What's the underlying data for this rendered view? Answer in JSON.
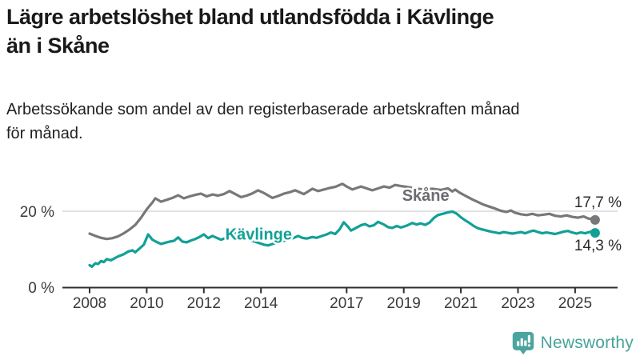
{
  "header": {
    "title_lines": [
      "Lägre arbetslöshet bland utlandsfödda i Kävlinge",
      "än i Skåne"
    ],
    "subtitle_lines": [
      "Arbetssökande som andel av den registerbaserade arbetskraften månad",
      "för månad."
    ]
  },
  "branding": {
    "logo_text": "Newsworthy",
    "logo_icon": "bar-chart-speech-bubble-icon",
    "logo_icon_color": "#4BA59E",
    "logo_text_color": "#47A39B"
  },
  "chart_data": {
    "type": "line",
    "title": "Lägre arbetslöshet bland utlandsfödda i Kävlinge än i Skåne",
    "subtitle": "Arbetssökande som andel av den registerbaserade arbetskraften månad för månad.",
    "xlabel": "",
    "ylabel": "",
    "legend_position": "inline-labels",
    "grid": "horizontal-20-only",
    "style": {
      "grid_color": "#D9D9D9",
      "axis_color": "#2E2E2E",
      "tick_label_color": "#3A3A3A",
      "value_label_color": "#2B2B2B",
      "background": "#FFFFFF"
    },
    "y_axis": {
      "range": [
        0,
        30
      ],
      "ticks": [
        {
          "value": 0,
          "label": "0 %"
        },
        {
          "value": 20,
          "label": "20 %"
        }
      ]
    },
    "x_axis": {
      "range": [
        2007.0,
        2026.5
      ],
      "ticks": [
        {
          "value": 2008,
          "label": "2008"
        },
        {
          "value": 2010,
          "label": "2010"
        },
        {
          "value": 2012,
          "label": "2012"
        },
        {
          "value": 2014,
          "label": "2014"
        },
        {
          "value": 2017,
          "label": "2017"
        },
        {
          "value": 2019,
          "label": "2019"
        },
        {
          "value": 2021,
          "label": "2021"
        },
        {
          "value": 2023,
          "label": "2023"
        },
        {
          "value": 2025,
          "label": "2025"
        }
      ]
    },
    "series": [
      {
        "id": "skane",
        "name": "Skåne",
        "color": "#77777C",
        "label_color": "#6B6B70",
        "end_label": "17,7 %",
        "end_value": 17.7,
        "end_label_side": "above",
        "label_at": [
          2019.77,
          24.2
        ],
        "points": [
          [
            2008.0,
            14.1
          ],
          [
            2008.2,
            13.5
          ],
          [
            2008.4,
            13.0
          ],
          [
            2008.6,
            12.7
          ],
          [
            2008.8,
            12.9
          ],
          [
            2009.0,
            13.4
          ],
          [
            2009.2,
            14.2
          ],
          [
            2009.4,
            15.2
          ],
          [
            2009.6,
            16.4
          ],
          [
            2009.8,
            18.3
          ],
          [
            2010.0,
            20.5
          ],
          [
            2010.2,
            22.3
          ],
          [
            2010.3,
            23.4
          ],
          [
            2010.5,
            22.5
          ],
          [
            2010.7,
            23.0
          ],
          [
            2010.9,
            23.5
          ],
          [
            2011.1,
            24.2
          ],
          [
            2011.3,
            23.4
          ],
          [
            2011.5,
            23.9
          ],
          [
            2011.7,
            24.3
          ],
          [
            2011.9,
            24.6
          ],
          [
            2012.1,
            23.9
          ],
          [
            2012.3,
            24.4
          ],
          [
            2012.5,
            24.1
          ],
          [
            2012.7,
            24.5
          ],
          [
            2012.9,
            25.3
          ],
          [
            2013.1,
            24.5
          ],
          [
            2013.3,
            23.7
          ],
          [
            2013.5,
            24.1
          ],
          [
            2013.7,
            24.7
          ],
          [
            2013.9,
            25.5
          ],
          [
            2014.1,
            24.8
          ],
          [
            2014.4,
            23.5
          ],
          [
            2014.6,
            24.0
          ],
          [
            2014.8,
            24.6
          ],
          [
            2015.0,
            25.0
          ],
          [
            2015.2,
            25.5
          ],
          [
            2015.5,
            24.5
          ],
          [
            2015.8,
            25.9
          ],
          [
            2016.0,
            25.3
          ],
          [
            2016.2,
            25.7
          ],
          [
            2016.4,
            26.1
          ],
          [
            2016.6,
            26.4
          ],
          [
            2016.85,
            27.2
          ],
          [
            2017.0,
            26.5
          ],
          [
            2017.2,
            25.7
          ],
          [
            2017.5,
            26.5
          ],
          [
            2017.7,
            26.0
          ],
          [
            2017.9,
            25.5
          ],
          [
            2018.1,
            26.0
          ],
          [
            2018.3,
            26.5
          ],
          [
            2018.5,
            26.2
          ],
          [
            2018.7,
            26.9
          ],
          [
            2018.9,
            26.6
          ],
          [
            2019.1,
            26.4
          ],
          [
            2019.4,
            26.0
          ],
          [
            2019.7,
            25.7
          ],
          [
            2020.0,
            25.9
          ],
          [
            2020.3,
            25.6
          ],
          [
            2020.55,
            26.0
          ],
          [
            2020.7,
            25.2
          ],
          [
            2020.8,
            25.7
          ],
          [
            2020.95,
            24.9
          ],
          [
            2021.1,
            24.3
          ],
          [
            2021.25,
            23.7
          ],
          [
            2021.4,
            23.1
          ],
          [
            2021.6,
            22.4
          ],
          [
            2021.8,
            21.7
          ],
          [
            2022.0,
            21.2
          ],
          [
            2022.2,
            20.7
          ],
          [
            2022.4,
            20.1
          ],
          [
            2022.6,
            19.8
          ],
          [
            2022.75,
            20.2
          ],
          [
            2022.9,
            19.6
          ],
          [
            2023.1,
            19.2
          ],
          [
            2023.3,
            19.0
          ],
          [
            2023.5,
            19.3
          ],
          [
            2023.7,
            18.9
          ],
          [
            2023.9,
            19.1
          ],
          [
            2024.1,
            19.3
          ],
          [
            2024.3,
            18.8
          ],
          [
            2024.5,
            18.6
          ],
          [
            2024.7,
            18.9
          ],
          [
            2024.9,
            18.5
          ],
          [
            2025.1,
            18.3
          ],
          [
            2025.3,
            18.6
          ],
          [
            2025.45,
            18.1
          ],
          [
            2025.6,
            17.9
          ],
          [
            2025.7,
            17.7
          ]
        ]
      },
      {
        "id": "kavlinge",
        "name": "Kävlinge",
        "color": "#12A096",
        "label_color": "#12A096",
        "end_label": "14,3 %",
        "end_value": 14.3,
        "end_label_side": "below",
        "label_at": [
          2013.92,
          14.0
        ],
        "points": [
          [
            2008.0,
            5.8
          ],
          [
            2008.08,
            5.4
          ],
          [
            2008.2,
            6.3
          ],
          [
            2008.3,
            6.1
          ],
          [
            2008.4,
            6.9
          ],
          [
            2008.5,
            6.6
          ],
          [
            2008.6,
            7.4
          ],
          [
            2008.75,
            7.1
          ],
          [
            2008.9,
            7.7
          ],
          [
            2009.0,
            8.1
          ],
          [
            2009.2,
            8.7
          ],
          [
            2009.35,
            9.4
          ],
          [
            2009.5,
            9.7
          ],
          [
            2009.6,
            9.2
          ],
          [
            2009.75,
            10.2
          ],
          [
            2009.9,
            11.2
          ],
          [
            2010.05,
            13.9
          ],
          [
            2010.2,
            12.5
          ],
          [
            2010.35,
            11.9
          ],
          [
            2010.5,
            11.4
          ],
          [
            2010.65,
            11.7
          ],
          [
            2010.8,
            12.0
          ],
          [
            2010.95,
            12.2
          ],
          [
            2011.1,
            13.1
          ],
          [
            2011.25,
            12.0
          ],
          [
            2011.4,
            11.8
          ],
          [
            2011.55,
            12.3
          ],
          [
            2011.7,
            12.7
          ],
          [
            2011.85,
            13.2
          ],
          [
            2012.0,
            13.9
          ],
          [
            2012.15,
            12.9
          ],
          [
            2012.3,
            13.5
          ],
          [
            2012.45,
            13.0
          ],
          [
            2012.6,
            12.5
          ],
          [
            2012.75,
            12.9
          ],
          [
            2012.9,
            13.5
          ],
          [
            2013.05,
            14.4
          ],
          [
            2013.2,
            13.9
          ],
          [
            2013.35,
            13.3
          ],
          [
            2013.5,
            12.7
          ],
          [
            2013.7,
            12.2
          ],
          [
            2013.9,
            11.7
          ],
          [
            2014.1,
            11.2
          ],
          [
            2014.25,
            11.0
          ],
          [
            2014.45,
            11.5
          ],
          [
            2014.6,
            11.8
          ],
          [
            2014.8,
            12.2
          ],
          [
            2015.0,
            12.6
          ],
          [
            2015.15,
            13.0
          ],
          [
            2015.3,
            13.5
          ],
          [
            2015.45,
            13.0
          ],
          [
            2015.6,
            12.8
          ],
          [
            2015.8,
            13.2
          ],
          [
            2015.95,
            13.0
          ],
          [
            2016.1,
            13.4
          ],
          [
            2016.3,
            13.9
          ],
          [
            2016.45,
            14.4
          ],
          [
            2016.6,
            14.0
          ],
          [
            2016.75,
            15.2
          ],
          [
            2016.9,
            17.1
          ],
          [
            2017.05,
            15.9
          ],
          [
            2017.15,
            14.9
          ],
          [
            2017.3,
            15.5
          ],
          [
            2017.5,
            16.3
          ],
          [
            2017.65,
            16.6
          ],
          [
            2017.8,
            16.0
          ],
          [
            2017.95,
            16.3
          ],
          [
            2018.1,
            17.2
          ],
          [
            2018.3,
            16.5
          ],
          [
            2018.45,
            15.8
          ],
          [
            2018.6,
            15.6
          ],
          [
            2018.75,
            16.1
          ],
          [
            2018.9,
            15.7
          ],
          [
            2019.1,
            16.2
          ],
          [
            2019.3,
            16.9
          ],
          [
            2019.45,
            16.5
          ],
          [
            2019.6,
            16.8
          ],
          [
            2019.75,
            16.4
          ],
          [
            2019.9,
            17.0
          ],
          [
            2020.05,
            18.2
          ],
          [
            2020.2,
            19.0
          ],
          [
            2020.4,
            19.4
          ],
          [
            2020.55,
            19.7
          ],
          [
            2020.7,
            19.9
          ],
          [
            2020.85,
            19.4
          ],
          [
            2021.0,
            18.4
          ],
          [
            2021.15,
            17.6
          ],
          [
            2021.3,
            16.9
          ],
          [
            2021.45,
            16.1
          ],
          [
            2021.6,
            15.5
          ],
          [
            2021.75,
            15.2
          ],
          [
            2021.9,
            14.9
          ],
          [
            2022.05,
            14.6
          ],
          [
            2022.2,
            14.4
          ],
          [
            2022.35,
            14.2
          ],
          [
            2022.5,
            14.5
          ],
          [
            2022.65,
            14.3
          ],
          [
            2022.8,
            14.1
          ],
          [
            2022.95,
            14.3
          ],
          [
            2023.1,
            14.5
          ],
          [
            2023.25,
            14.2
          ],
          [
            2023.4,
            14.6
          ],
          [
            2023.55,
            14.9
          ],
          [
            2023.7,
            14.5
          ],
          [
            2023.85,
            14.2
          ],
          [
            2024.0,
            14.4
          ],
          [
            2024.15,
            14.2
          ],
          [
            2024.3,
            14.0
          ],
          [
            2024.45,
            14.3
          ],
          [
            2024.6,
            14.6
          ],
          [
            2024.75,
            14.8
          ],
          [
            2024.9,
            14.4
          ],
          [
            2025.05,
            14.1
          ],
          [
            2025.2,
            14.4
          ],
          [
            2025.35,
            14.2
          ],
          [
            2025.5,
            14.5
          ],
          [
            2025.6,
            14.7
          ],
          [
            2025.7,
            14.3
          ]
        ]
      }
    ]
  }
}
